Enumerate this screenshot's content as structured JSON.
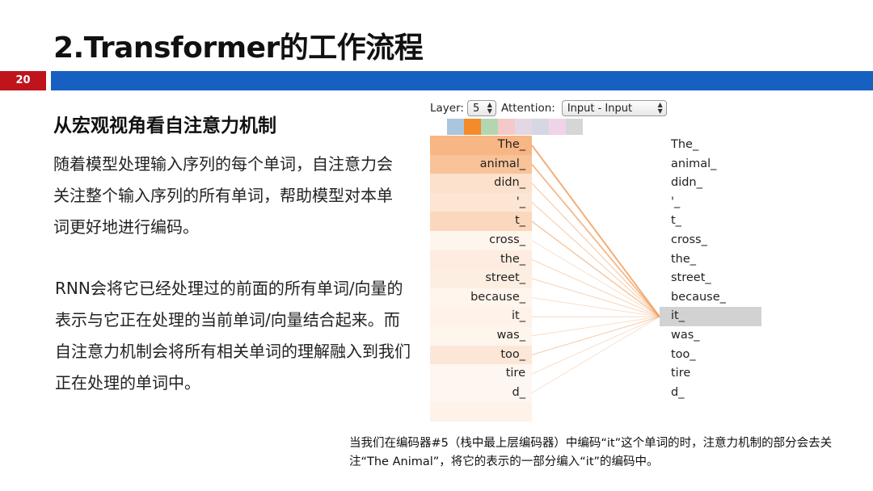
{
  "slide": {
    "title": "2.Transformer的工作流程",
    "page_number": "20",
    "subtitle": "从宏观视角看自注意力机制",
    "paragraph1": "随着模型处理输入序列的每个单词，自注意力会关注整个输入序列的所有单词，帮助模型对本单词更好地进行编码。",
    "paragraph2": "RNN会将它已经处理过的前面的所有单词/向量的表示与它正在处理的当前单词/向量结合起来。而自注意力机制会将所有相关单词的理解融入到我们正在处理的单词中。",
    "caption": "当我们在编码器#5（栈中最上层编码器）中编码“it”这个单词的时，注意力机制的部分会去关注“The Animal”，将它的表示的一部分编入“it”的编码中。",
    "colors": {
      "accent_red": "#c0141c",
      "accent_blue": "#1560c1"
    }
  },
  "viz": {
    "layer_label": "Layer:",
    "layer_value": "5",
    "attention_label": "Attention:",
    "attention_value": "Input - Input",
    "head_colors": [
      "#a9c6de",
      "#f58a2a",
      "#b3d6b0",
      "#f3c9c9",
      "#e4d7e4",
      "#d6d6e4",
      "#efd4e8",
      "#d6d6d6"
    ],
    "selected_head": 1,
    "tokens": [
      "The_",
      "animal_",
      "didn_",
      "'_",
      "t_",
      "cross_",
      "the_",
      "street_",
      "because_",
      "it_",
      "was_",
      "too_",
      "tire",
      "d_",
      ""
    ],
    "weights": [
      0.85,
      0.7,
      0.35,
      0.3,
      0.45,
      0.12,
      0.22,
      0.2,
      0.12,
      0.15,
      0.12,
      0.28,
      0.1,
      0.1,
      0.15
    ],
    "selected_token_index": 9,
    "line_color": "#f0a060"
  }
}
